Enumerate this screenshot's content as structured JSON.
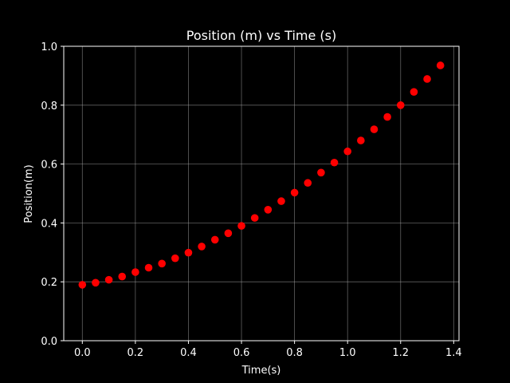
{
  "chart_data": {
    "type": "scatter",
    "title": "Position (m) vs Time (s)",
    "xlabel": "Time(s)",
    "ylabel": "Position(m)",
    "xlim": [
      -0.07,
      1.42
    ],
    "ylim": [
      0.0,
      1.0
    ],
    "xticks": [
      "0.0",
      "0.2",
      "0.4",
      "0.6",
      "0.8",
      "1.0",
      "1.2",
      "1.4"
    ],
    "yticks": [
      "0.0",
      "0.2",
      "0.4",
      "0.6",
      "0.8",
      "1.0"
    ],
    "grid": true,
    "background": "#000000",
    "foreground": "#ffffff",
    "marker_color": "#ff0000",
    "series": [
      {
        "x": [
          0.0,
          0.05,
          0.1,
          0.15,
          0.2,
          0.25,
          0.3,
          0.35,
          0.4,
          0.45,
          0.5,
          0.55,
          0.6,
          0.65,
          0.7,
          0.75,
          0.8,
          0.85,
          0.9,
          0.95,
          1.0,
          1.05,
          1.1,
          1.15,
          1.2,
          1.25,
          1.3,
          1.35
        ],
        "y": [
          0.19,
          0.197,
          0.207,
          0.218,
          0.233,
          0.248,
          0.262,
          0.28,
          0.299,
          0.32,
          0.343,
          0.365,
          0.39,
          0.417,
          0.445,
          0.474,
          0.503,
          0.536,
          0.571,
          0.605,
          0.643,
          0.68,
          0.718,
          0.76,
          0.8,
          0.845,
          0.889,
          0.935
        ]
      }
    ]
  }
}
